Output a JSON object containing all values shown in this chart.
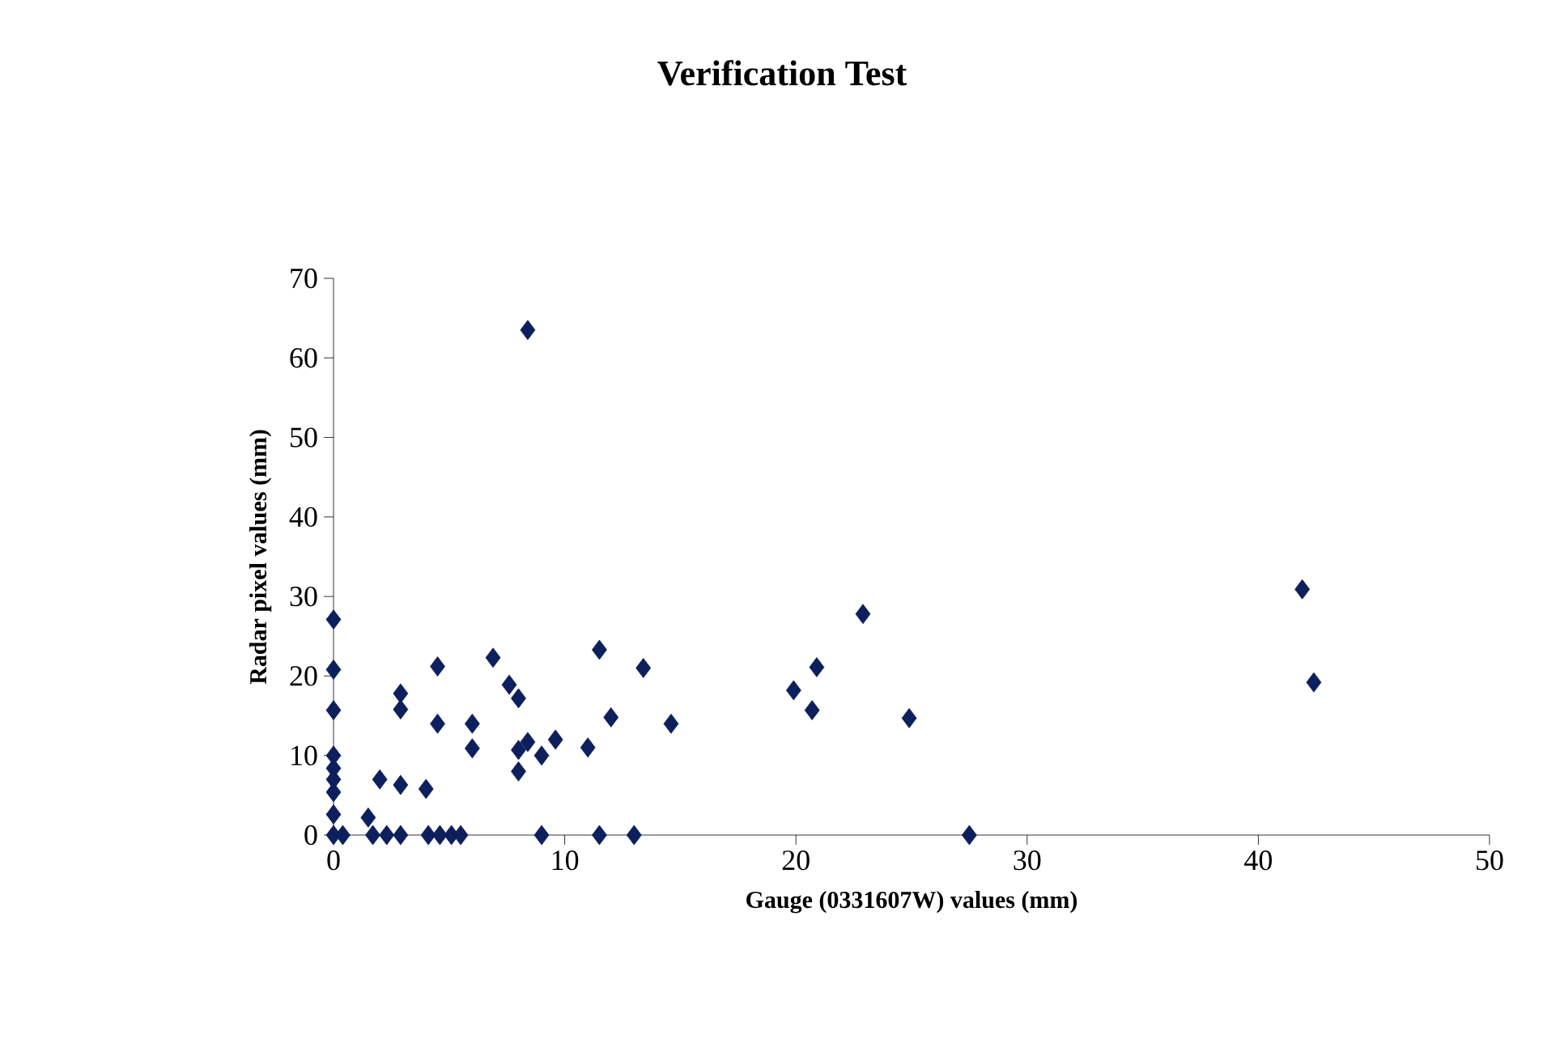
{
  "chart_data": {
    "type": "scatter",
    "title": "Verification Test",
    "xlabel": "Gauge (0331607W) values (mm)",
    "ylabel": "Radar pixel values (mm)",
    "xlim": [
      0,
      50
    ],
    "ylim": [
      0,
      70
    ],
    "xticks": [
      0,
      10,
      20,
      30,
      40,
      50
    ],
    "yticks": [
      0,
      10,
      20,
      30,
      40,
      50,
      60,
      70
    ],
    "grid": false,
    "marker": "diamond",
    "series": [
      {
        "color": "#0d1f5c",
        "x": [
          0,
          0,
          0,
          0,
          0,
          0,
          0,
          0,
          0,
          0.4,
          1.7,
          2.3,
          2.9,
          4.1,
          4.6,
          5.1,
          5.5,
          9.0,
          11.5,
          13.0,
          1.5,
          2.0,
          2.9,
          4.0,
          2.9,
          2.9,
          4.5,
          4.5,
          6.0,
          6.0,
          6.9,
          7.6,
          8.0,
          8.0,
          8.0,
          8.4,
          9.0,
          9.6,
          11.0,
          11.5,
          12.0,
          13.4,
          14.6,
          8.4,
          22.9,
          20.9,
          19.9,
          20.7,
          24.9,
          27.5,
          41.9,
          42.4
        ],
        "values": [
          27.1,
          20.8,
          15.7,
          10.0,
          8.4,
          7.0,
          5.4,
          2.6,
          0,
          0,
          0,
          0,
          0,
          0,
          0,
          0,
          0,
          0,
          0,
          0,
          2.2,
          7.0,
          6.3,
          5.8,
          17.8,
          15.8,
          21.2,
          14.0,
          14.0,
          10.9,
          22.3,
          18.9,
          17.2,
          8.0,
          10.7,
          11.7,
          10.0,
          12.0,
          11.0,
          23.3,
          14.8,
          21.0,
          14.0,
          63.5,
          27.8,
          21.1,
          18.2,
          15.7,
          14.7,
          0,
          30.9,
          19.2
        ]
      }
    ]
  }
}
